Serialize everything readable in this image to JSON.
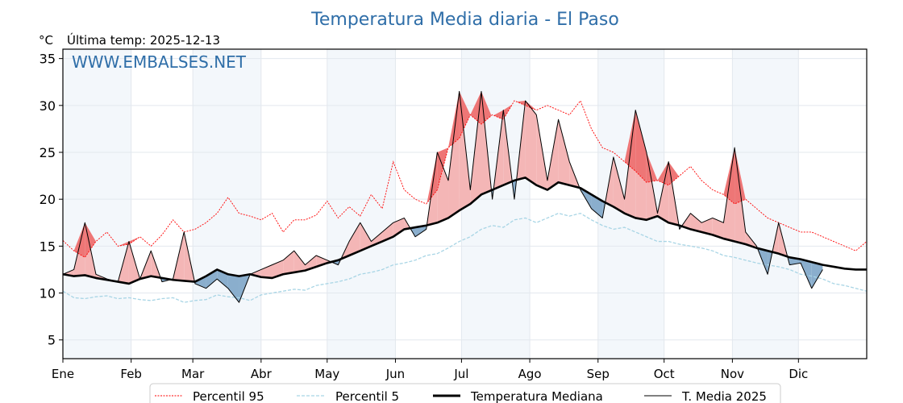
{
  "chart_data": {
    "type": "line",
    "title": "Temperatura Media diaria - El Paso",
    "subtitle": "Última temp: 2025-12-13",
    "ylabel": "°C",
    "watermark": "WWW.EMBALSES.NET",
    "ylim": [
      3,
      36
    ],
    "yticks": [
      5,
      10,
      15,
      20,
      25,
      30,
      35
    ],
    "xlim": [
      0,
      365
    ],
    "xticks": [
      {
        "label": "Ene",
        "day": 0
      },
      {
        "label": "Feb",
        "day": 31
      },
      {
        "label": "Mar",
        "day": 59
      },
      {
        "label": "Abr",
        "day": 90
      },
      {
        "label": "May",
        "day": 120
      },
      {
        "label": "Jun",
        "day": 151
      },
      {
        "label": "Jul",
        "day": 181
      },
      {
        "label": "Ago",
        "day": 212
      },
      {
        "label": "Sep",
        "day": 243
      },
      {
        "label": "Oct",
        "day": 273
      },
      {
        "label": "Nov",
        "day": 304
      },
      {
        "label": "Dic",
        "day": 334
      }
    ],
    "grid": true,
    "legend_position": "bottom-center",
    "legend": [
      "Percentil 95",
      "Percentil 5",
      "Temperatura Mediana",
      "T. Media 2025"
    ],
    "colors": {
      "p95": "#ff0000",
      "p5": "#a8d5e5",
      "median": "#000000",
      "t2025": "#000000",
      "above_fill": "#f4b6b6",
      "above_strong_fill": "#ee7676",
      "below_fill": "#8aaecd",
      "month_band": "#f3f7fb",
      "title": "#2f6ea8"
    },
    "x_days": [
      0,
      5,
      10,
      15,
      20,
      25,
      30,
      35,
      40,
      45,
      50,
      55,
      60,
      65,
      70,
      75,
      80,
      85,
      90,
      95,
      100,
      105,
      110,
      115,
      120,
      125,
      130,
      135,
      140,
      145,
      150,
      155,
      160,
      165,
      170,
      175,
      180,
      185,
      190,
      195,
      200,
      205,
      210,
      215,
      220,
      225,
      230,
      235,
      240,
      245,
      250,
      255,
      260,
      265,
      270,
      275,
      280,
      285,
      290,
      295,
      300,
      305,
      310,
      315,
      320,
      325,
      330,
      335,
      340,
      345,
      350,
      355,
      360,
      365
    ],
    "series": [
      {
        "name": "Percentil 95",
        "values": [
          15.6,
          14.5,
          13.8,
          15.5,
          16.5,
          15.0,
          15.2,
          16.0,
          15.0,
          16.2,
          17.8,
          16.5,
          16.8,
          17.5,
          18.5,
          20.2,
          18.5,
          18.2,
          17.8,
          18.5,
          16.5,
          17.8,
          17.8,
          18.3,
          19.8,
          18.0,
          19.2,
          18.2,
          20.5,
          19.0,
          24.0,
          21.0,
          20.0,
          19.5,
          21.0,
          25.5,
          26.5,
          29.0,
          28.0,
          29.0,
          28.5,
          30.5,
          30.0,
          29.5,
          30.0,
          29.5,
          29.0,
          30.5,
          27.5,
          25.5,
          25.0,
          24.0,
          23.0,
          21.8,
          22.0,
          21.5,
          22.5,
          23.5,
          22.0,
          21.0,
          20.5,
          19.5,
          20.0,
          19.0,
          18.0,
          17.5,
          17.0,
          16.5,
          16.5,
          16.0,
          15.5,
          15.0,
          14.5,
          15.5
        ]
      },
      {
        "name": "Percentil 5",
        "values": [
          10.2,
          9.5,
          9.4,
          9.6,
          9.7,
          9.4,
          9.5,
          9.3,
          9.2,
          9.4,
          9.5,
          9.0,
          9.2,
          9.3,
          9.8,
          9.6,
          9.5,
          9.2,
          9.8,
          10.0,
          10.2,
          10.4,
          10.3,
          10.8,
          11.0,
          11.2,
          11.5,
          12.0,
          12.2,
          12.5,
          13.0,
          13.2,
          13.5,
          14.0,
          14.2,
          14.8,
          15.5,
          16.0,
          16.8,
          17.2,
          17.0,
          17.8,
          18.0,
          17.5,
          18.0,
          18.5,
          18.2,
          18.5,
          17.8,
          17.2,
          16.8,
          17.0,
          16.5,
          16.0,
          15.5,
          15.5,
          15.2,
          15.0,
          14.8,
          14.5,
          14.0,
          13.8,
          13.5,
          13.2,
          13.0,
          12.8,
          12.5,
          12.0,
          11.8,
          11.5,
          11.0,
          10.8,
          10.5,
          10.2
        ]
      },
      {
        "name": "Temperatura Mediana",
        "values": [
          12.0,
          11.8,
          11.9,
          11.6,
          11.4,
          11.2,
          11.0,
          11.5,
          11.8,
          11.6,
          11.4,
          11.3,
          11.2,
          11.8,
          12.5,
          12.0,
          11.8,
          12.0,
          11.7,
          11.6,
          12.0,
          12.2,
          12.4,
          12.8,
          13.2,
          13.5,
          14.0,
          14.5,
          15.0,
          15.5,
          16.0,
          16.8,
          17.0,
          17.2,
          17.5,
          18.0,
          18.8,
          19.5,
          20.5,
          21.0,
          21.5,
          22.0,
          22.3,
          21.5,
          21.0,
          21.8,
          21.5,
          21.2,
          20.5,
          19.8,
          19.2,
          18.5,
          18.0,
          17.8,
          18.2,
          17.5,
          17.2,
          16.8,
          16.5,
          16.2,
          15.8,
          15.5,
          15.2,
          14.8,
          14.5,
          14.2,
          13.8,
          13.6,
          13.3,
          13.0,
          12.8,
          12.6,
          12.5,
          12.5
        ]
      },
      {
        "name": "T. Media 2025",
        "values": [
          12.0,
          12.5,
          17.5,
          12.0,
          11.5,
          11.2,
          15.5,
          11.5,
          14.5,
          11.2,
          11.5,
          16.5,
          11.0,
          10.5,
          11.5,
          10.5,
          9.0,
          12.0,
          12.5,
          13.0,
          13.5,
          14.5,
          13.0,
          14.0,
          13.5,
          13.0,
          15.5,
          17.5,
          15.5,
          16.5,
          17.5,
          18.0,
          16.0,
          16.8,
          25.0,
          22.0,
          31.5,
          21.0,
          31.5,
          20.0,
          29.5,
          20.0,
          30.5,
          29.0,
          22.0,
          28.5,
          24.0,
          21.0,
          19.0,
          18.0,
          24.5,
          20.0,
          29.5,
          25.0,
          18.5,
          24.0,
          16.8,
          18.5,
          17.5,
          18.0,
          17.5,
          25.5,
          16.5,
          15.0,
          12.0,
          17.5,
          13.0,
          13.2,
          10.5,
          12.5
        ]
      }
    ]
  }
}
